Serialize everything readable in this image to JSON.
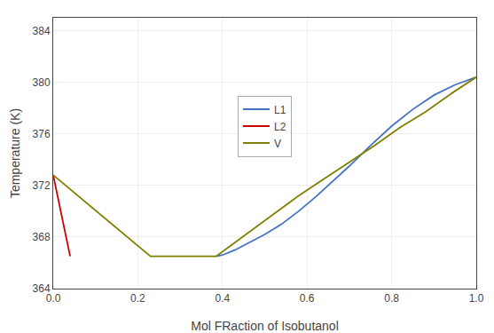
{
  "chart_data": {
    "type": "line",
    "xlabel": "Mol FRaction of Isobutanol",
    "ylabel": "Temperature (K)",
    "xlim": [
      0,
      1.0
    ],
    "ylim": [
      364,
      385
    ],
    "xticks": [
      {
        "value": 0.0,
        "label": "0.0"
      },
      0.2,
      0.4,
      0.6,
      0.8,
      {
        "value": 1.0,
        "label": "1.0"
      }
    ],
    "yticks": [
      364,
      368,
      372,
      376,
      380,
      384
    ],
    "grid": true,
    "legend": "center",
    "series": [
      {
        "name": "L1",
        "color": "#4472c4",
        "x": [
          0.385,
          0.4,
          0.43,
          0.46,
          0.5,
          0.54,
          0.58,
          0.62,
          0.66,
          0.7,
          0.75,
          0.8,
          0.85,
          0.9,
          0.95,
          1.0
        ],
        "values": [
          366.5,
          366.6,
          367.0,
          367.5,
          368.2,
          369.0,
          370.0,
          371.1,
          372.3,
          373.5,
          375.1,
          376.6,
          377.9,
          379.0,
          379.8,
          380.4
        ]
      },
      {
        "name": "L2",
        "color": "#cc0000",
        "x": [
          0.0,
          0.04
        ],
        "values": [
          372.8,
          366.5
        ]
      },
      {
        "name": "V",
        "color": "#7f7f00",
        "x": [
          0.0,
          0.23,
          0.385,
          0.46,
          0.52,
          0.58,
          0.64,
          0.7,
          0.76,
          0.82,
          0.88,
          0.94,
          1.0
        ],
        "values": [
          372.8,
          366.5,
          366.5,
          368.3,
          369.8,
          371.2,
          372.5,
          373.8,
          375.1,
          376.5,
          377.7,
          379.1,
          380.4
        ]
      }
    ]
  }
}
